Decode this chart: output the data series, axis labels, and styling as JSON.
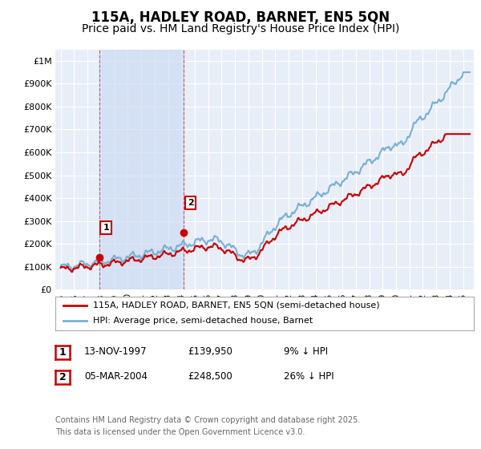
{
  "title": "115A, HADLEY ROAD, BARNET, EN5 5QN",
  "subtitle": "Price paid vs. HM Land Registry's House Price Index (HPI)",
  "ylim": [
    0,
    1050000
  ],
  "yticks": [
    0,
    100000,
    200000,
    300000,
    400000,
    500000,
    600000,
    700000,
    800000,
    900000,
    1000000
  ],
  "ytick_labels": [
    "£0",
    "£100K",
    "£200K",
    "£300K",
    "£400K",
    "£500K",
    "£600K",
    "£700K",
    "£800K",
    "£900K",
    "£1M"
  ],
  "background_color": "#ffffff",
  "plot_bg_color": "#e8eef8",
  "grid_color": "#ffffff",
  "sale1_date_num": 1997.87,
  "sale1_price": 139950,
  "sale1_label": "1",
  "sale2_date_num": 2004.18,
  "sale2_price": 248500,
  "sale2_label": "2",
  "red_color": "#cc0000",
  "blue_color": "#7ab0d4",
  "legend_line1": "115A, HADLEY ROAD, BARNET, EN5 5QN (semi-detached house)",
  "legend_line2": "HPI: Average price, semi-detached house, Barnet",
  "table_rows": [
    {
      "num": "1",
      "date": "13-NOV-1997",
      "price": "£139,950",
      "hpi": "9% ↓ HPI"
    },
    {
      "num": "2",
      "date": "05-MAR-2004",
      "price": "£248,500",
      "hpi": "26% ↓ HPI"
    }
  ],
  "footer_line1": "Contains HM Land Registry data © Crown copyright and database right 2025.",
  "footer_line2": "This data is licensed under the Open Government Licence v3.0.",
  "title_fontsize": 12,
  "subtitle_fontsize": 10,
  "tick_fontsize": 8,
  "shaded_color": "#c8d8f0",
  "shaded_alpha": 0.6,
  "vline_color": "#cc0000",
  "xlim_left": 1994.6,
  "xlim_right": 2025.8
}
